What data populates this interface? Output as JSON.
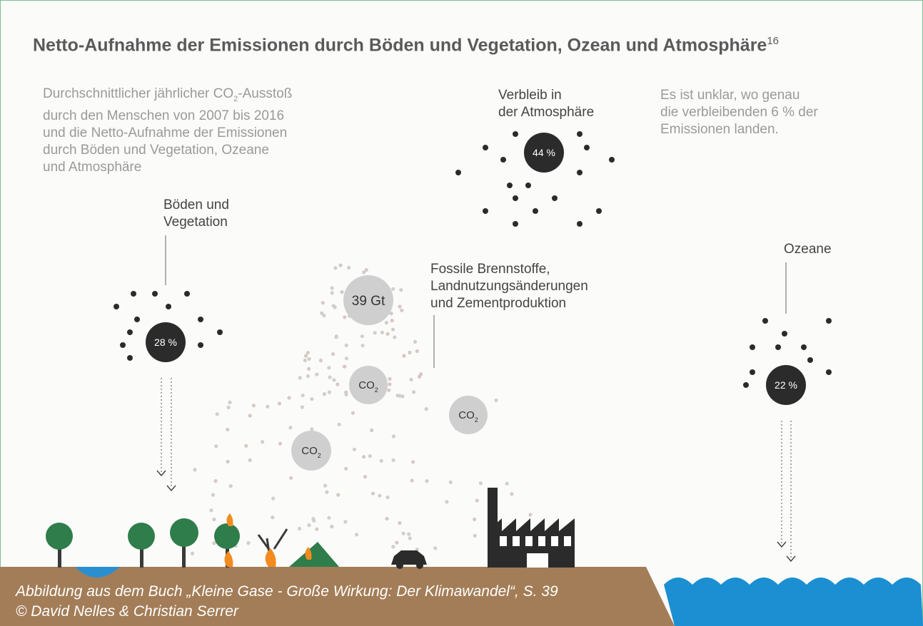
{
  "title": "Netto-Aufnahme der Emissionen durch Böden und Vegetation, Ozean und Atmosphäre",
  "title_note": "16",
  "intro": {
    "first_line": [
      "Durchschnittlicher jährlicher CO",
      "2",
      "-Ausstoß"
    ],
    "lines": [
      "durch den Menschen von 2007 bis 2016",
      "und die Netto-Aufnahme der Emissionen",
      "durch Böden und Vegetation, Ozeane",
      "und Atmosphäre"
    ]
  },
  "labels": {
    "atmosphere": [
      "Verbleib in",
      "der Atmosphäre"
    ],
    "unclear": [
      "Es ist unklar, wo genau",
      "die verbleibenden 6 % der",
      "Emissionen landen."
    ],
    "land": [
      "Böden und",
      "Vegetation"
    ],
    "sources": [
      "Fossile Brennstoffe,",
      "Landnutzungsänderungen",
      "und Zementproduktion"
    ],
    "ocean": [
      "Ozeane"
    ]
  },
  "circles": {
    "atmosphere": "44 %",
    "land": "28 %",
    "ocean": "22 %",
    "total": "39 Gt",
    "co2": [
      "CO",
      "2"
    ]
  },
  "credit": [
    "Abbildung aus dem Buch „Kleine Gase - Große Wirkung: Der Klimawandel“, S. 39",
    "© David Nelles & Christian Serrer"
  ]
}
